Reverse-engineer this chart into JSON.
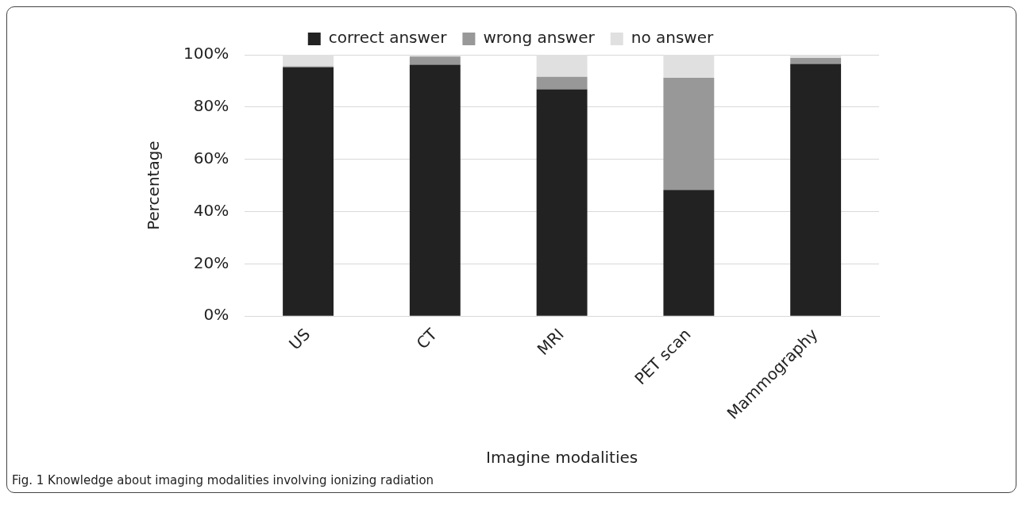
{
  "chart_data": {
    "type": "bar",
    "stacked": true,
    "xlabel": "Imagine modalities",
    "ylabel": "Percentage",
    "categories": [
      "US",
      "CT",
      "MRI",
      "PET scan",
      "Mammography"
    ],
    "series": [
      {
        "name": "correct answer",
        "color": "#222222",
        "values": [
          95.2,
          96.2,
          86.8,
          48.3,
          96.5
        ]
      },
      {
        "name": "wrong answer",
        "color": "#989898",
        "values": [
          0.4,
          3.1,
          4.8,
          42.9,
          2.3
        ]
      },
      {
        "name": "no answer",
        "color": "#e0e0e0",
        "values": [
          4.4,
          0.7,
          8.4,
          8.8,
          1.2
        ]
      }
    ],
    "ylim": [
      0,
      100
    ],
    "yticks": [
      {
        "value": 0,
        "label": "0%"
      },
      {
        "value": 20,
        "label": "20%"
      },
      {
        "value": 40,
        "label": "40%"
      },
      {
        "value": 60,
        "label": "60%"
      },
      {
        "value": 80,
        "label": "80%"
      },
      {
        "value": 100,
        "label": "100%"
      }
    ],
    "grid": "y",
    "legend": "top",
    "annotations": [
      "Fig. 1 Knowledge about imaging modalities involving ionizing radiation"
    ]
  }
}
